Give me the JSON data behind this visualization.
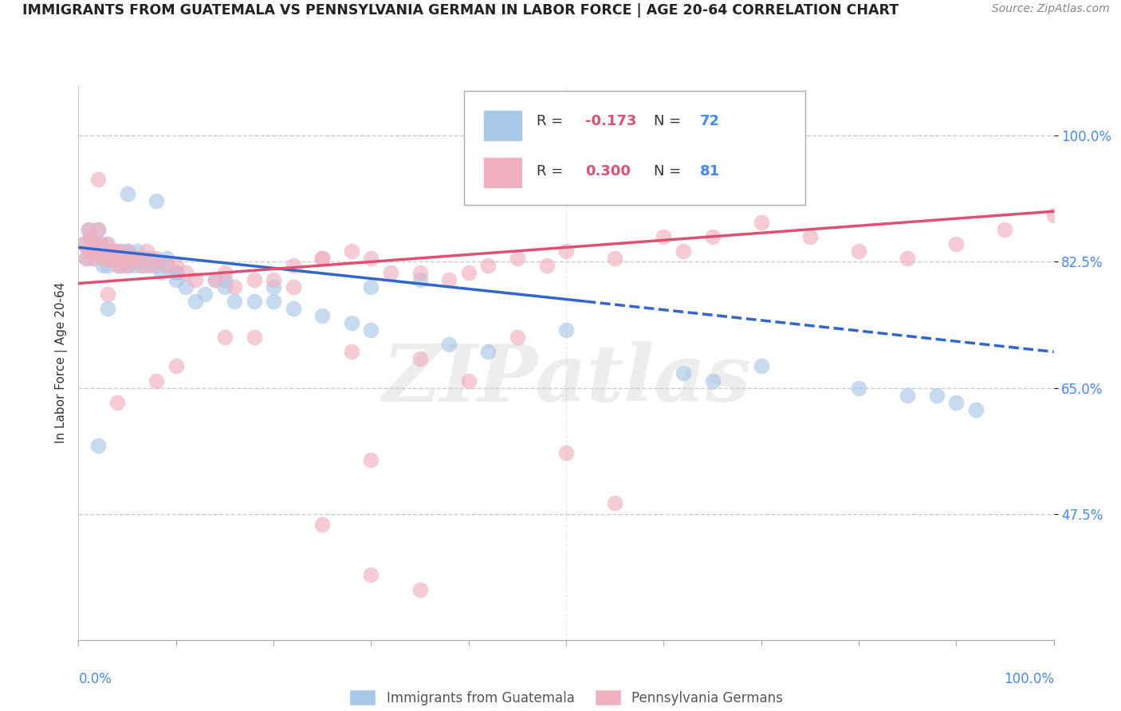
{
  "title": "IMMIGRANTS FROM GUATEMALA VS PENNSYLVANIA GERMAN IN LABOR FORCE | AGE 20-64 CORRELATION CHART",
  "source": "Source: ZipAtlas.com",
  "ylabel": "In Labor Force | Age 20-64",
  "ytick_labels": [
    "47.5%",
    "65.0%",
    "82.5%",
    "100.0%"
  ],
  "ytick_values": [
    0.475,
    0.65,
    0.825,
    1.0
  ],
  "xrange": [
    0.0,
    1.0
  ],
  "yrange": [
    0.3,
    1.07
  ],
  "blue_R": -0.173,
  "blue_N": 72,
  "pink_R": 0.3,
  "pink_N": 81,
  "blue_color": "#a8c8e8",
  "pink_color": "#f0b0c0",
  "blue_line_color": "#3366cc",
  "pink_line_color": "#e05070",
  "blue_line_style": "-",
  "blue_line_ext_style": "--",
  "watermark": "ZIPatlas",
  "legend_label_blue": "Immigrants from Guatemala",
  "legend_label_pink": "Pennsylvania Germans",
  "blue_trend_x0": 0.0,
  "blue_trend_y0": 0.845,
  "blue_trend_x1": 0.52,
  "blue_trend_y1": 0.77,
  "blue_trend_x1_ext": 1.0,
  "blue_trend_y1_ext": 0.7,
  "pink_trend_x0": 0.0,
  "pink_trend_y0": 0.795,
  "pink_trend_x1": 1.0,
  "pink_trend_y1": 0.895,
  "blue_x": [
    0.005,
    0.008,
    0.01,
    0.01,
    0.012,
    0.015,
    0.015,
    0.018,
    0.02,
    0.02,
    0.022,
    0.025,
    0.025,
    0.028,
    0.03,
    0.03,
    0.032,
    0.035,
    0.038,
    0.04,
    0.04,
    0.042,
    0.045,
    0.048,
    0.05,
    0.05,
    0.055,
    0.058,
    0.06,
    0.062,
    0.065,
    0.07,
    0.072,
    0.075,
    0.08,
    0.085,
    0.09,
    0.09,
    0.1,
    0.1,
    0.11,
    0.12,
    0.13,
    0.14,
    0.15,
    0.16,
    0.18,
    0.2,
    0.22,
    0.28,
    0.3,
    0.38,
    0.42,
    0.5,
    0.62,
    0.65,
    0.7,
    0.8,
    0.85,
    0.88,
    0.9,
    0.92,
    0.3,
    0.35,
    0.25,
    0.2,
    0.15,
    0.1,
    0.08,
    0.05,
    0.03,
    0.02
  ],
  "blue_y": [
    0.85,
    0.83,
    0.87,
    0.84,
    0.86,
    0.85,
    0.83,
    0.84,
    0.87,
    0.84,
    0.85,
    0.84,
    0.82,
    0.85,
    0.84,
    0.82,
    0.83,
    0.84,
    0.83,
    0.84,
    0.83,
    0.82,
    0.84,
    0.83,
    0.84,
    0.82,
    0.83,
    0.82,
    0.84,
    0.83,
    0.82,
    0.83,
    0.82,
    0.83,
    0.82,
    0.81,
    0.83,
    0.82,
    0.81,
    0.8,
    0.79,
    0.77,
    0.78,
    0.8,
    0.79,
    0.77,
    0.77,
    0.77,
    0.76,
    0.74,
    0.73,
    0.71,
    0.7,
    0.73,
    0.67,
    0.66,
    0.68,
    0.65,
    0.64,
    0.64,
    0.63,
    0.62,
    0.79,
    0.8,
    0.75,
    0.79,
    0.8,
    0.81,
    0.91,
    0.92,
    0.76,
    0.57
  ],
  "pink_x": [
    0.005,
    0.008,
    0.01,
    0.01,
    0.012,
    0.015,
    0.015,
    0.018,
    0.02,
    0.02,
    0.022,
    0.025,
    0.028,
    0.03,
    0.03,
    0.032,
    0.035,
    0.038,
    0.04,
    0.04,
    0.042,
    0.045,
    0.05,
    0.05,
    0.055,
    0.06,
    0.065,
    0.07,
    0.075,
    0.08,
    0.09,
    0.1,
    0.11,
    0.12,
    0.14,
    0.15,
    0.16,
    0.18,
    0.2,
    0.22,
    0.25,
    0.28,
    0.3,
    0.32,
    0.35,
    0.38,
    0.4,
    0.42,
    0.45,
    0.48,
    0.5,
    0.55,
    0.6,
    0.62,
    0.65,
    0.7,
    0.75,
    0.8,
    0.85,
    0.9,
    0.95,
    1.0,
    0.02,
    0.03,
    0.04,
    0.08,
    0.1,
    0.28,
    0.3,
    0.22,
    0.25,
    0.18,
    0.15,
    0.35,
    0.4,
    0.45,
    0.5,
    0.55,
    0.25,
    0.3,
    0.35
  ],
  "pink_y": [
    0.85,
    0.83,
    0.87,
    0.84,
    0.86,
    0.85,
    0.83,
    0.84,
    0.87,
    0.84,
    0.85,
    0.83,
    0.84,
    0.85,
    0.83,
    0.83,
    0.84,
    0.83,
    0.84,
    0.82,
    0.83,
    0.82,
    0.84,
    0.82,
    0.83,
    0.83,
    0.82,
    0.84,
    0.82,
    0.83,
    0.82,
    0.82,
    0.81,
    0.8,
    0.8,
    0.81,
    0.79,
    0.8,
    0.8,
    0.82,
    0.83,
    0.84,
    0.83,
    0.81,
    0.81,
    0.8,
    0.81,
    0.82,
    0.83,
    0.82,
    0.84,
    0.83,
    0.86,
    0.84,
    0.86,
    0.88,
    0.86,
    0.84,
    0.83,
    0.85,
    0.87,
    0.89,
    0.94,
    0.78,
    0.63,
    0.66,
    0.68,
    0.7,
    0.55,
    0.79,
    0.83,
    0.72,
    0.72,
    0.69,
    0.66,
    0.72,
    0.56,
    0.49,
    0.46,
    0.39,
    0.37
  ]
}
